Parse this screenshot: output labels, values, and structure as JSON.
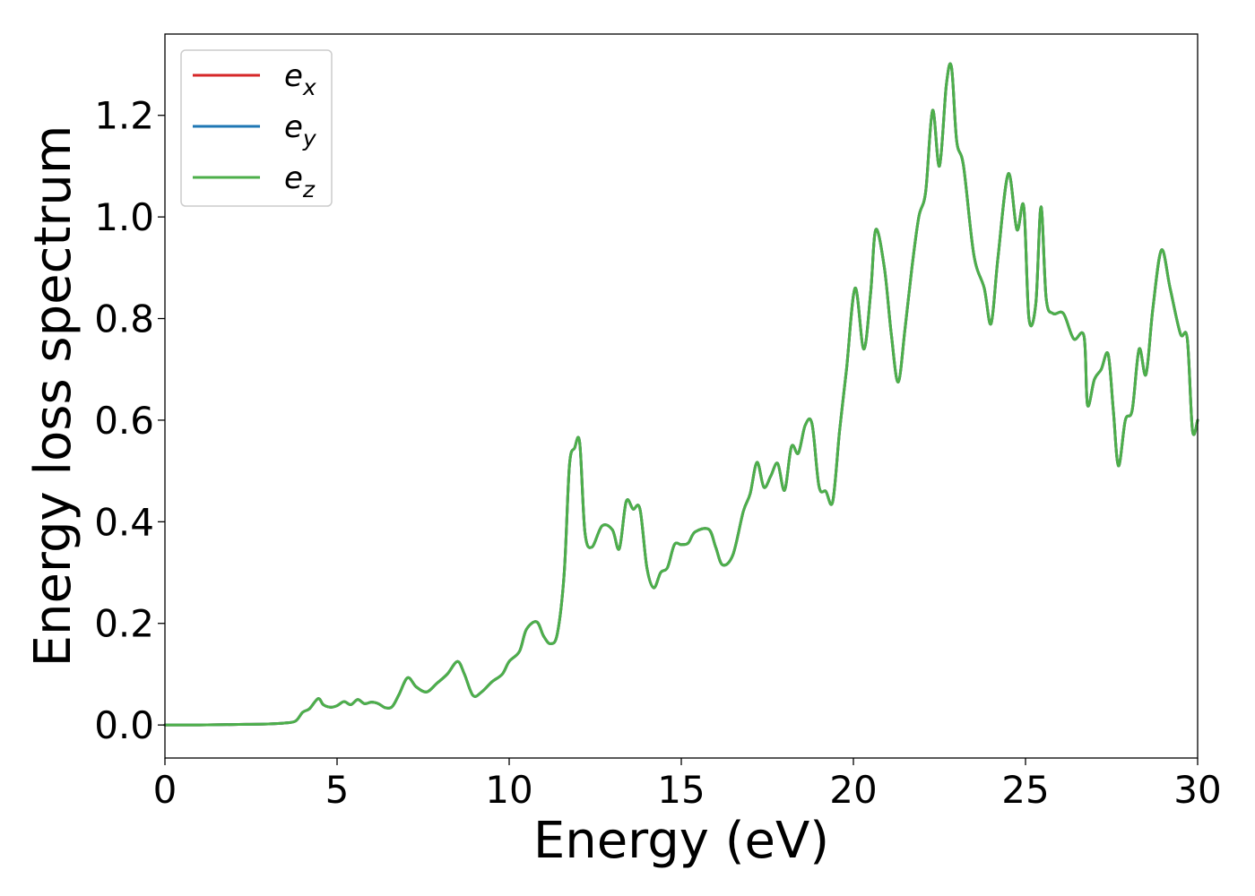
{
  "chart_data": {
    "type": "line",
    "title": "",
    "xlabel": "Energy (eV)",
    "ylabel": "Energy loss spectrum",
    "xlim": [
      0,
      30
    ],
    "ylim": [
      -0.065,
      1.36
    ],
    "xticks": [
      0,
      5,
      10,
      15,
      20,
      25,
      30
    ],
    "xtick_labels": [
      "0",
      "5",
      "10",
      "15",
      "20",
      "25",
      "30"
    ],
    "yticks": [
      0.0,
      0.2,
      0.4,
      0.6,
      0.8,
      1.0,
      1.2
    ],
    "ytick_labels": [
      "0.0",
      "0.2",
      "0.4",
      "0.6",
      "0.8",
      "1.0",
      "1.2"
    ],
    "grid": false,
    "legend_position": "top-left",
    "legend": [
      {
        "base": "e",
        "sub": "x",
        "color": "#d62728"
      },
      {
        "base": "e",
        "sub": "y",
        "color": "#1f77b4"
      },
      {
        "base": "e",
        "sub": "z",
        "color": "#4daf4a"
      }
    ],
    "x": [
      0,
      1,
      2,
      3,
      3.5,
      3.8,
      4.0,
      4.2,
      4.45,
      4.6,
      4.8,
      5.0,
      5.2,
      5.4,
      5.6,
      5.8,
      6.0,
      6.2,
      6.4,
      6.6,
      6.8,
      7.05,
      7.3,
      7.6,
      7.9,
      8.2,
      8.5,
      8.7,
      8.95,
      9.2,
      9.5,
      9.8,
      10.0,
      10.3,
      10.5,
      10.8,
      11.0,
      11.2,
      11.4,
      11.6,
      11.75,
      11.9,
      12.05,
      12.2,
      12.4,
      12.7,
      13.0,
      13.2,
      13.4,
      13.6,
      13.8,
      14.0,
      14.2,
      14.4,
      14.6,
      14.8,
      15.0,
      15.2,
      15.4,
      15.8,
      16.0,
      16.2,
      16.5,
      16.8,
      17.0,
      17.2,
      17.4,
      17.6,
      17.8,
      18.0,
      18.2,
      18.4,
      18.6,
      18.8,
      19.0,
      19.2,
      19.4,
      19.6,
      19.8,
      20.05,
      20.3,
      20.5,
      20.65,
      20.9,
      21.1,
      21.3,
      21.5,
      21.7,
      21.9,
      22.1,
      22.3,
      22.5,
      22.7,
      22.85,
      23.0,
      23.2,
      23.5,
      23.8,
      24.0,
      24.2,
      24.5,
      24.75,
      24.95,
      25.1,
      25.3,
      25.45,
      25.6,
      25.8,
      26.1,
      26.4,
      26.7,
      26.8,
      27.0,
      27.2,
      27.4,
      27.55,
      27.7,
      27.9,
      28.1,
      28.3,
      28.5,
      28.7,
      28.95,
      29.2,
      29.5,
      29.7,
      29.85,
      30.0
    ],
    "series": [
      {
        "name": "e_z",
        "color": "#4daf4a",
        "values": [
          0.0,
          0.0,
          0.001,
          0.002,
          0.004,
          0.008,
          0.025,
          0.032,
          0.052,
          0.04,
          0.035,
          0.038,
          0.046,
          0.04,
          0.05,
          0.042,
          0.045,
          0.042,
          0.034,
          0.036,
          0.06,
          0.093,
          0.075,
          0.065,
          0.082,
          0.1,
          0.125,
          0.1,
          0.058,
          0.065,
          0.085,
          0.1,
          0.125,
          0.145,
          0.188,
          0.203,
          0.175,
          0.16,
          0.18,
          0.3,
          0.51,
          0.545,
          0.555,
          0.38,
          0.35,
          0.392,
          0.384,
          0.347,
          0.44,
          0.425,
          0.425,
          0.31,
          0.27,
          0.3,
          0.31,
          0.355,
          0.355,
          0.358,
          0.38,
          0.385,
          0.35,
          0.315,
          0.335,
          0.42,
          0.455,
          0.517,
          0.468,
          0.49,
          0.515,
          0.462,
          0.548,
          0.535,
          0.59,
          0.592,
          0.47,
          0.46,
          0.44,
          0.58,
          0.7,
          0.86,
          0.74,
          0.85,
          0.975,
          0.9,
          0.77,
          0.675,
          0.78,
          0.9,
          1.0,
          1.05,
          1.21,
          1.1,
          1.26,
          1.295,
          1.15,
          1.1,
          0.925,
          0.86,
          0.79,
          0.92,
          1.085,
          0.975,
          1.02,
          0.8,
          0.83,
          1.02,
          0.84,
          0.81,
          0.81,
          0.76,
          0.765,
          0.63,
          0.68,
          0.7,
          0.73,
          0.62,
          0.51,
          0.6,
          0.62,
          0.74,
          0.69,
          0.82,
          0.935,
          0.86,
          0.77,
          0.76,
          0.58,
          0.6
        ]
      },
      {
        "name": "e_y",
        "color": "#1f77b4",
        "same_as": "e_z"
      },
      {
        "name": "e_x",
        "color": "#d62728",
        "same_as": "e_z"
      }
    ]
  }
}
